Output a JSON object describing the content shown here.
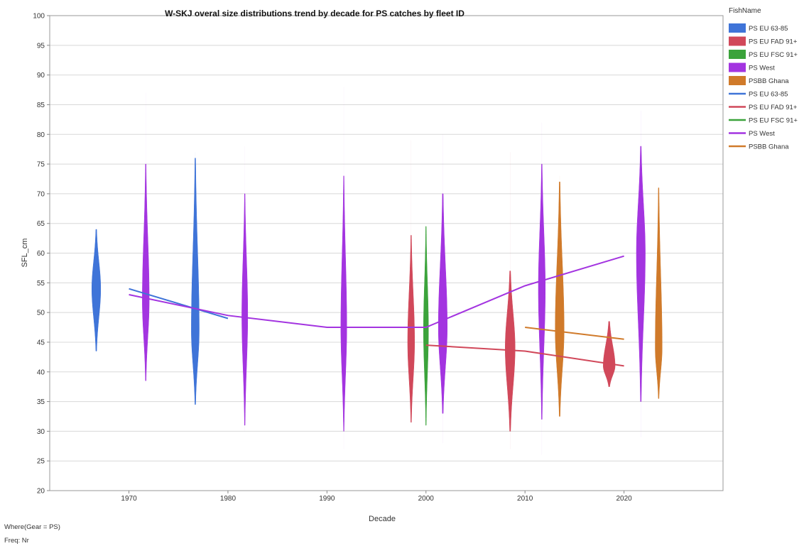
{
  "chart_data": {
    "type": "violin+line",
    "title": "W-SKJ overal size distributions trend by decade for PS catches by fleet ID",
    "xlabel": "Decade",
    "ylabel": "SFL_cm",
    "xlim": [
      1962,
      2030
    ],
    "ylim": [
      20,
      100
    ],
    "x_ticks": [
      1970,
      1980,
      1990,
      2000,
      2010,
      2020
    ],
    "y_ticks": [
      20,
      25,
      30,
      35,
      40,
      45,
      50,
      55,
      60,
      65,
      70,
      75,
      80,
      85,
      90,
      95,
      100
    ],
    "grid": "horizontal",
    "legend_position": "right",
    "legend_title": "FishName",
    "series": [
      {
        "name": "PS EU 63-85",
        "color": "#3f74d8",
        "violins": [
          {
            "x": 1966.7,
            "min": 43.5,
            "max": 64,
            "mode": 54,
            "halfwidth": 0.45,
            "tailmin": 43.5,
            "tailmax": 64
          },
          {
            "x": 1976.7,
            "min": 34.5,
            "max": 76,
            "mode": 47,
            "halfwidth": 0.4,
            "tailmin": 34.5,
            "tailmax": 77
          }
        ],
        "line": [
          [
            1970,
            54
          ],
          [
            1980,
            49
          ]
        ]
      },
      {
        "name": "PS EU FAD 91+",
        "color": "#d1485a",
        "violins": [
          {
            "x": 1998.5,
            "min": 31.5,
            "max": 63,
            "mode": 45,
            "halfwidth": 0.35,
            "tailmin": 31.5,
            "tailmax": 79
          },
          {
            "x": 2008.5,
            "min": 30,
            "max": 57,
            "mode": 44,
            "halfwidth": 0.5,
            "tailmin": 27,
            "tailmax": 77
          },
          {
            "x": 2018.5,
            "min": 37.5,
            "max": 48.5,
            "mode": 41,
            "halfwidth": 0.6,
            "tailmin": 37.5,
            "tailmax": 48.5
          }
        ],
        "line": [
          [
            2000,
            44.5
          ],
          [
            2010,
            43.5
          ],
          [
            2020,
            41
          ]
        ]
      },
      {
        "name": "PS EU FSC 91+",
        "color": "#3ba33b",
        "violins": [
          {
            "x": 2000,
            "min": 31,
            "max": 64.5,
            "mode": 47,
            "halfwidth": 0.25,
            "tailmin": 31,
            "tailmax": 64.5
          }
        ],
        "line": []
      },
      {
        "name": "PS West",
        "color": "#a334e0",
        "violins": [
          {
            "x": 1971.7,
            "min": 38.5,
            "max": 75,
            "mode": 52,
            "halfwidth": 0.35,
            "tailmin": 38.5,
            "tailmax": 87
          },
          {
            "x": 1981.7,
            "min": 31,
            "max": 70,
            "mode": 49.5,
            "halfwidth": 0.3,
            "tailmin": 30,
            "tailmax": 78
          },
          {
            "x": 1991.7,
            "min": 30,
            "max": 73,
            "mode": 47.5,
            "halfwidth": 0.3,
            "tailmin": 27,
            "tailmax": 88
          },
          {
            "x": 2001.7,
            "min": 33,
            "max": 70,
            "mode": 47.5,
            "halfwidth": 0.45,
            "tailmin": 28,
            "tailmax": 80
          },
          {
            "x": 2011.7,
            "min": 32,
            "max": 75,
            "mode": 54,
            "halfwidth": 0.35,
            "tailmin": 26,
            "tailmax": 82
          },
          {
            "x": 2021.7,
            "min": 35,
            "max": 78,
            "mode": 60,
            "halfwidth": 0.45,
            "tailmin": 29,
            "tailmax": 84
          }
        ],
        "line": [
          [
            1970,
            53
          ],
          [
            1980,
            49.5
          ],
          [
            1990,
            47.5
          ],
          [
            2000,
            47.5
          ],
          [
            2010,
            54.5
          ],
          [
            2020,
            59.5
          ]
        ]
      },
      {
        "name": "PSBB Ghana",
        "color": "#d07a2a",
        "violins": [
          {
            "x": 2013.5,
            "min": 32.5,
            "max": 72,
            "mode": 47,
            "halfwidth": 0.45,
            "tailmin": 32.5,
            "tailmax": 73
          },
          {
            "x": 2023.5,
            "min": 35.5,
            "max": 71,
            "mode": 44,
            "halfwidth": 0.35,
            "tailmin": 35.5,
            "tailmax": 71
          }
        ],
        "line": [
          [
            2010,
            47.5
          ],
          [
            2020,
            45.5
          ]
        ]
      }
    ]
  },
  "footer": {
    "where": "Where(Gear = PS)",
    "freq": "Freq: Nr"
  }
}
